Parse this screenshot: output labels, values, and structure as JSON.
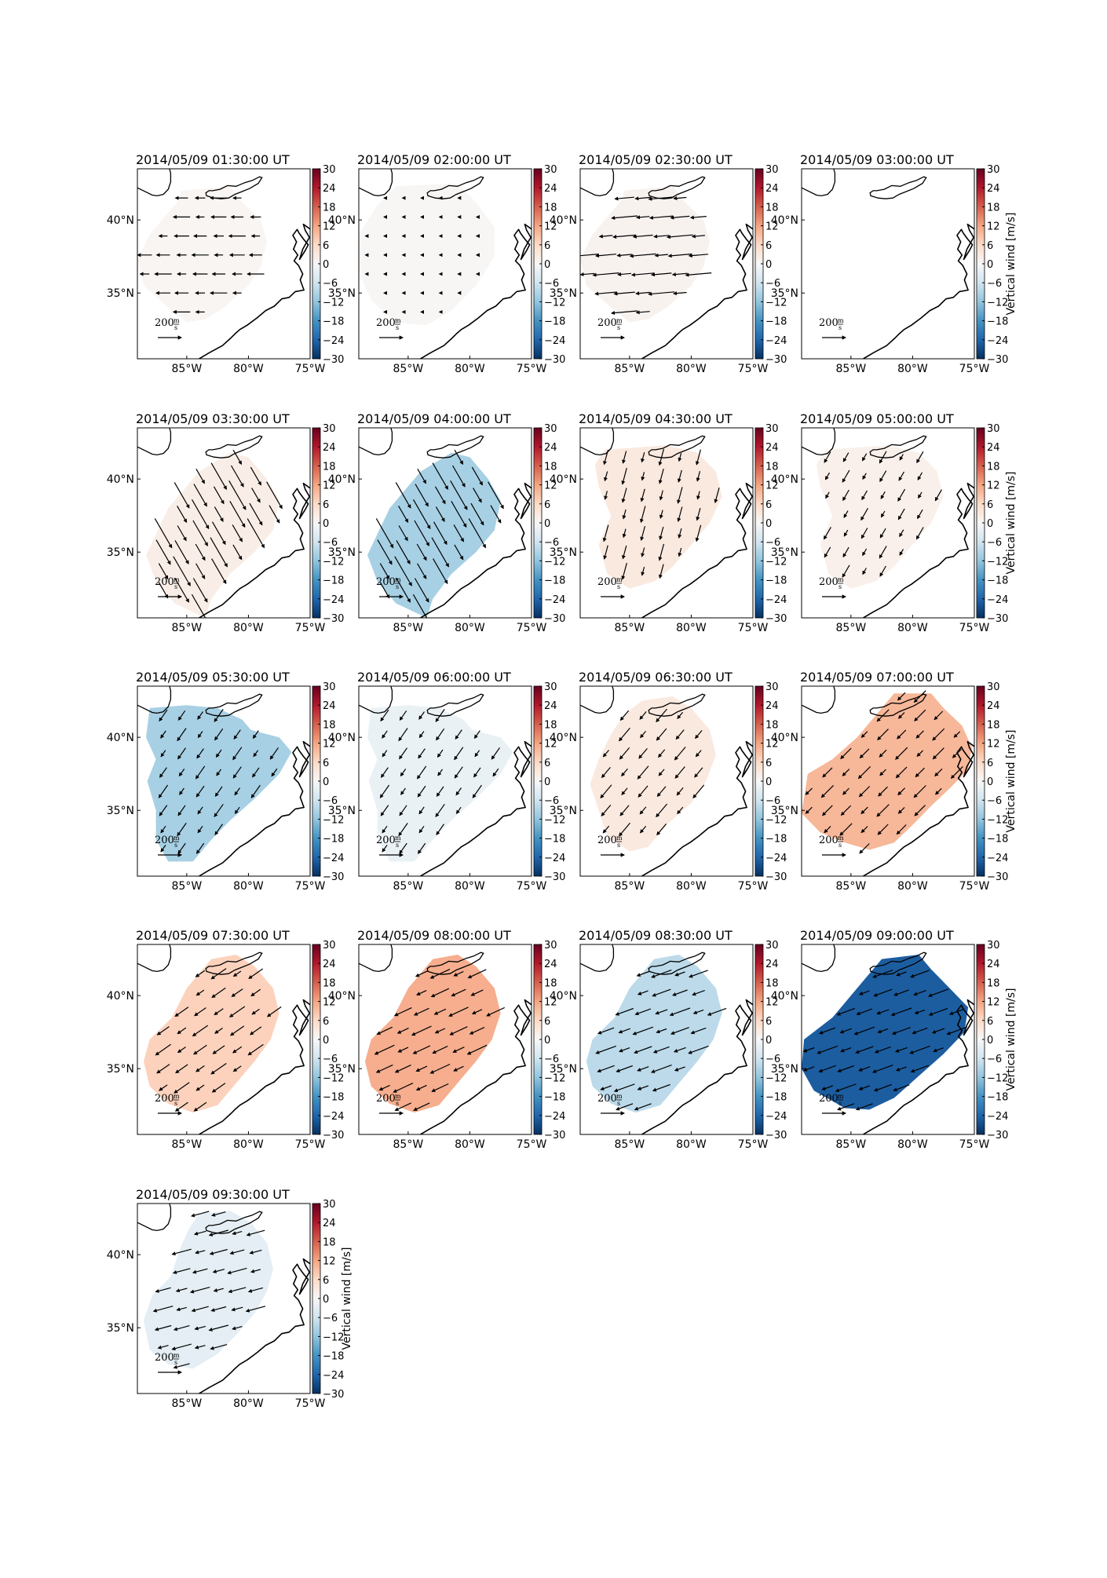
{
  "chart_data": {
    "type": "heatmap",
    "description_quantity": "Vertical wind",
    "colorbar": {
      "label": "Vertical wind [m/s]",
      "ticks": [
        30,
        24,
        18,
        12,
        6,
        0,
        -6,
        -12,
        -18,
        -24,
        -30
      ],
      "tick_labels": [
        "30",
        "24",
        "18",
        "12",
        "6",
        "0",
        "−6",
        "−12",
        "−18",
        "−24",
        "−30"
      ],
      "range": [
        -30,
        30
      ],
      "colormap": "RdBu_r",
      "label_shown_on": [
        "2014/05/09 03:00:00 UT",
        "2014/05/09 05:00:00 UT",
        "2014/05/09 07:00:00 UT",
        "2014/05/09 09:00:00 UT",
        "2014/05/09 09:30:00 UT"
      ]
    },
    "x_tick_labels": [
      "85°W",
      "80°W",
      "75°W"
    ],
    "x_ticks": [
      -85,
      -80,
      -75
    ],
    "y_tick_labels": [
      "40°N",
      "35°N"
    ],
    "y_ticks": [
      40,
      35
    ],
    "lon_range": [
      -89,
      -75
    ],
    "lat_range": [
      30.5,
      43.5
    ],
    "reference_vector": {
      "value_text": "200",
      "unit_num": "m",
      "unit_den": "s",
      "magnitude": 200
    },
    "panels": [
      {
        "title": "2014/05/09 01:30:00 UT",
        "vertical_wind": 0.5,
        "region": "A",
        "wind_dir": 180,
        "arrow_scale": 0.55,
        "vectors": true
      },
      {
        "title": "2014/05/09 02:00:00 UT",
        "vertical_wind": 0.2,
        "region": "B",
        "wind_dir": 180,
        "arrow_scale": 0.05,
        "vectors": true
      },
      {
        "title": "2014/05/09 02:30:00 UT",
        "vertical_wind": 1.0,
        "region": "A",
        "wind_dir": 185,
        "arrow_scale": 0.85,
        "vectors": true
      },
      {
        "title": "2014/05/09 03:00:00 UT",
        "vertical_wind": 0,
        "region": "none",
        "wind_dir": 0,
        "arrow_scale": 0,
        "vectors": false
      },
      {
        "title": "2014/05/09 03:30:00 UT",
        "vertical_wind": 2,
        "region": "C",
        "wind_dir": 300,
        "arrow_scale": 1.1,
        "vectors": true
      },
      {
        "title": "2014/05/09 04:00:00 UT",
        "vertical_wind": -10,
        "region": "C",
        "wind_dir": 300,
        "arrow_scale": 1.1,
        "vectors": true
      },
      {
        "title": "2014/05/09 04:30:00 UT",
        "vertical_wind": 3,
        "region": "D",
        "wind_dir": 255,
        "arrow_scale": 0.55,
        "vectors": true
      },
      {
        "title": "2014/05/09 05:00:00 UT",
        "vertical_wind": 1.5,
        "region": "D",
        "wind_dir": 240,
        "arrow_scale": 0.45,
        "vectors": true
      },
      {
        "title": "2014/05/09 05:30:00 UT",
        "vertical_wind": -10,
        "region": "E",
        "wind_dir": 235,
        "arrow_scale": 0.5,
        "vectors": true
      },
      {
        "title": "2014/05/09 06:00:00 UT",
        "vertical_wind": -2,
        "region": "E",
        "wind_dir": 235,
        "arrow_scale": 0.5,
        "vectors": true
      },
      {
        "title": "2014/05/09 06:30:00 UT",
        "vertical_wind": 3,
        "region": "F",
        "wind_dir": 230,
        "arrow_scale": 0.55,
        "vectors": true
      },
      {
        "title": "2014/05/09 07:00:00 UT",
        "vertical_wind": 10,
        "region": "G",
        "wind_dir": 225,
        "arrow_scale": 0.55,
        "vectors": true
      },
      {
        "title": "2014/05/09 07:30:00 UT",
        "vertical_wind": 7,
        "region": "H",
        "wind_dir": 215,
        "arrow_scale": 0.6,
        "vectors": true
      },
      {
        "title": "2014/05/09 08:00:00 UT",
        "vertical_wind": 11,
        "region": "H",
        "wind_dir": 205,
        "arrow_scale": 0.7,
        "vectors": true
      },
      {
        "title": "2014/05/09 08:30:00 UT",
        "vertical_wind": -8,
        "region": "H",
        "wind_dir": 200,
        "arrow_scale": 0.7,
        "vectors": true
      },
      {
        "title": "2014/05/09 09:00:00 UT",
        "vertical_wind": -25,
        "region": "I",
        "wind_dir": 200,
        "arrow_scale": 0.7,
        "vectors": true
      },
      {
        "title": "2014/05/09 09:30:00 UT",
        "vertical_wind": -3,
        "region": "J",
        "wind_dir": 195,
        "arrow_scale": 0.65,
        "vectors": true
      }
    ]
  }
}
